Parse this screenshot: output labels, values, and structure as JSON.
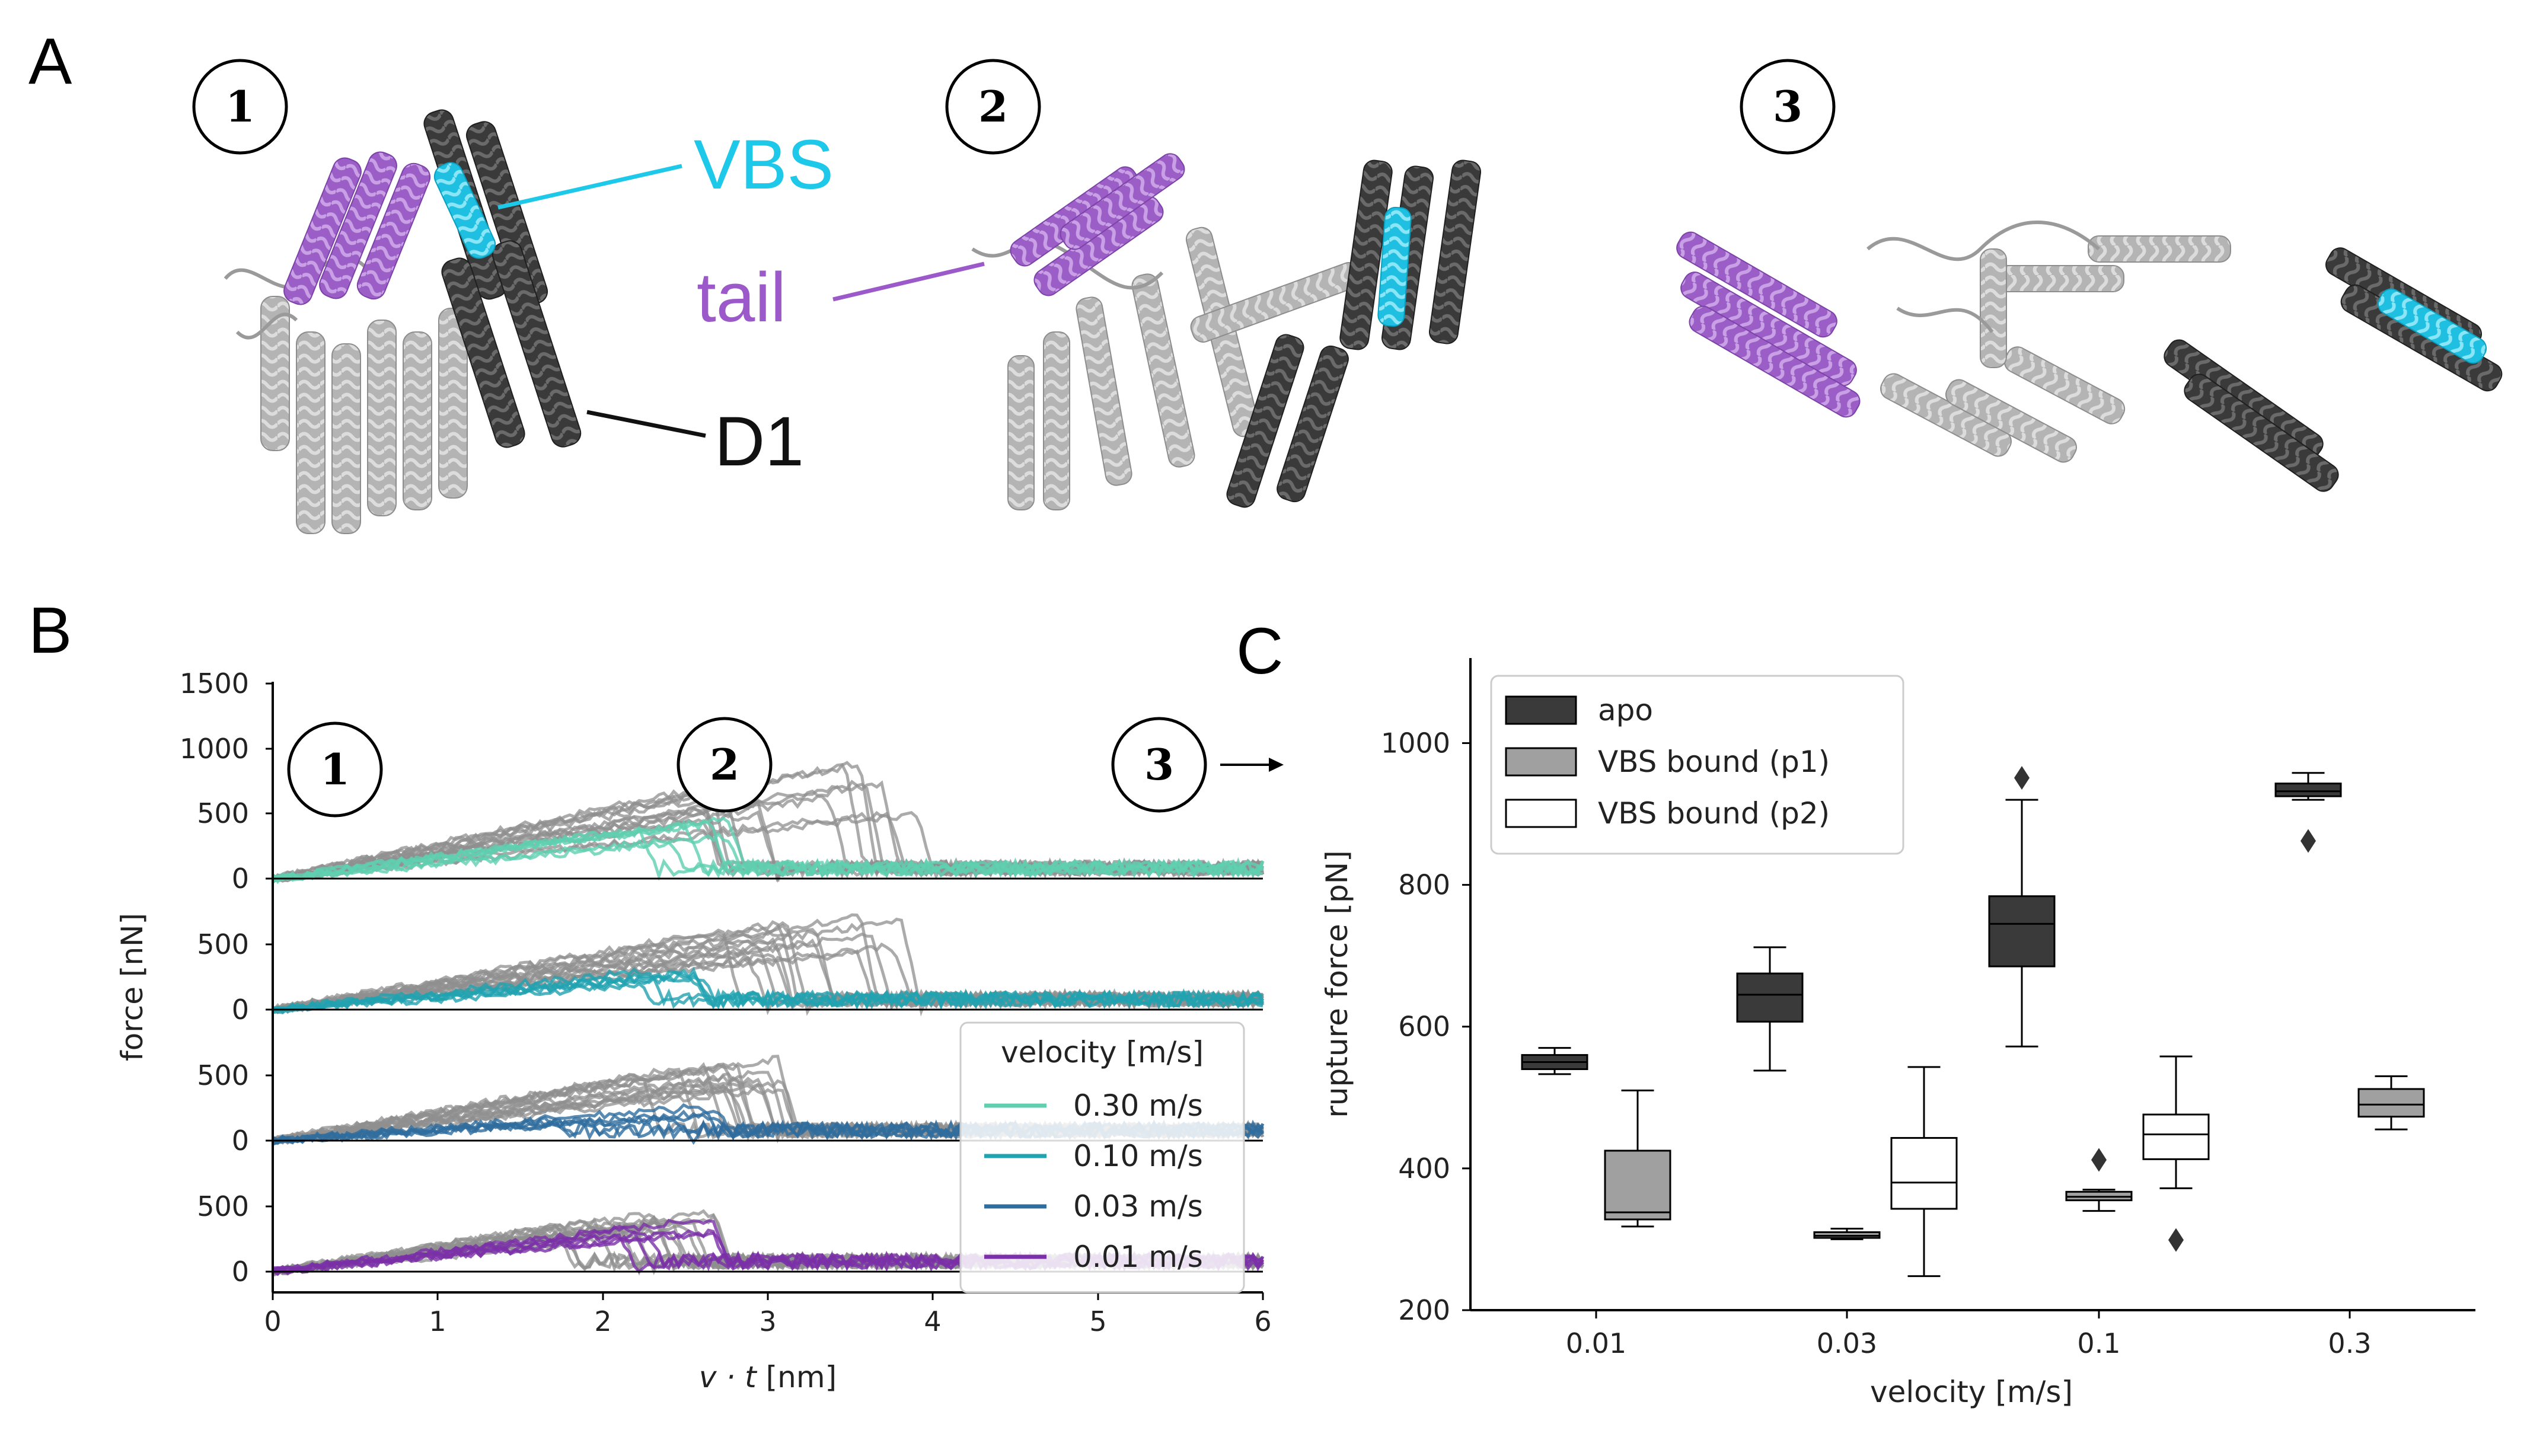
{
  "panel_a": {
    "letter": "A",
    "states": [
      "1",
      "2",
      "3"
    ],
    "labels": {
      "vbs": "VBS",
      "tail": "tail",
      "d1": "D1"
    },
    "colors": {
      "vbs": "#1ec8e8",
      "tail": "#9b59c9",
      "d1": "#111111",
      "helix_dark": "#3c3c3c",
      "helix_light": "#a8a8a8",
      "helix_purple": "#9d64c8",
      "helix_cyan": "#22c4e4"
    }
  },
  "panel_b": {
    "letter": "B",
    "ylabel": "force [nN]",
    "xlabel_prefix": "v · t",
    "xlabel_suffix": " [nm]",
    "xticks": [
      "0",
      "1",
      "2",
      "3",
      "4",
      "5",
      "6"
    ],
    "markers": [
      "1",
      "2",
      "3"
    ],
    "legend_title": "velocity [m/s]",
    "rows": [
      {
        "yticks": [
          "1500",
          "1000",
          "500",
          "0"
        ],
        "label": "0.30 m/s",
        "color": "#5fcfb0",
        "apo_peak": 900,
        "apo_rupture": [
          2.6,
          4.0
        ],
        "vbs_peak": 480,
        "vbs_rupture": [
          2.2,
          2.8
        ]
      },
      {
        "yticks": [
          "500",
          "0"
        ],
        "label": "0.10 m/s",
        "color": "#22a3b0",
        "apo_peak": 780,
        "apo_rupture": [
          2.6,
          4.1
        ],
        "vbs_peak": 330,
        "vbs_rupture": [
          2.2,
          2.8
        ]
      },
      {
        "yticks": [
          "500",
          "0"
        ],
        "label": "0.03 m/s",
        "color": "#2f6d9e",
        "apo_peak": 650,
        "apo_rupture": [
          1.9,
          3.1
        ],
        "vbs_peak": 270,
        "vbs_rupture": [
          1.7,
          2.8
        ]
      },
      {
        "yticks": [
          "500",
          "0"
        ],
        "label": "0.01 m/s",
        "color": "#7b2fa8",
        "apo_peak": 460,
        "apo_rupture": [
          1.7,
          2.7
        ],
        "vbs_peak": 420,
        "vbs_rupture": [
          1.9,
          2.8
        ]
      }
    ],
    "arrow": "→"
  },
  "chart_data": {
    "type": "box",
    "ylabel": "rupture force [pN]",
    "xlabel": "velocity [m/s]",
    "categories": [
      "0.01",
      "0.03",
      "0.1",
      "0.3"
    ],
    "ylim": [
      200,
      1120
    ],
    "yticks": [
      "200",
      "400",
      "600",
      "800",
      "1000"
    ],
    "legend": "top-left",
    "series": [
      {
        "name": "apo",
        "color": "#3a3a3a",
        "boxes": [
          {
            "q1": 540,
            "median": 550,
            "q3": 560,
            "whislo": 533,
            "whishi": 570,
            "fliers": []
          },
          {
            "q1": 607,
            "median": 645,
            "q3": 675,
            "whislo": 538,
            "whishi": 712,
            "fliers": []
          },
          {
            "q1": 685,
            "median": 745,
            "q3": 784,
            "whislo": 572,
            "whishi": 920,
            "fliers": [
              951
            ]
          },
          {
            "q1": 925,
            "median": 932,
            "q3": 943,
            "whislo": 920,
            "whishi": 958,
            "fliers": [
              862
            ]
          }
        ]
      },
      {
        "name": "VBS bound (p1)",
        "color": "#a0a0a0",
        "boxes": [
          {
            "q1": 328,
            "median": 338,
            "q3": 425,
            "whislo": 318,
            "whishi": 510,
            "fliers": []
          },
          {
            "q1": 302,
            "median": 305,
            "q3": 310,
            "whislo": 300,
            "whishi": 315,
            "fliers": []
          },
          {
            "q1": 355,
            "median": 360,
            "q3": 367,
            "whislo": 340,
            "whishi": 370,
            "fliers": [
              412
            ]
          },
          {
            "q1": 473,
            "median": 490,
            "q3": 512,
            "whislo": 455,
            "whishi": 530,
            "fliers": []
          }
        ]
      },
      {
        "name": "VBS bound (p2)",
        "color": "#ffffff",
        "boxes": [
          null,
          {
            "q1": 343,
            "median": 380,
            "q3": 443,
            "whislo": 248,
            "whishi": 543,
            "fliers": []
          },
          {
            "q1": 413,
            "median": 448,
            "q3": 476,
            "whislo": 372,
            "whishi": 558,
            "fliers": [
              299
            ]
          },
          null
        ]
      }
    ]
  },
  "panel_c": {
    "letter": "C"
  }
}
